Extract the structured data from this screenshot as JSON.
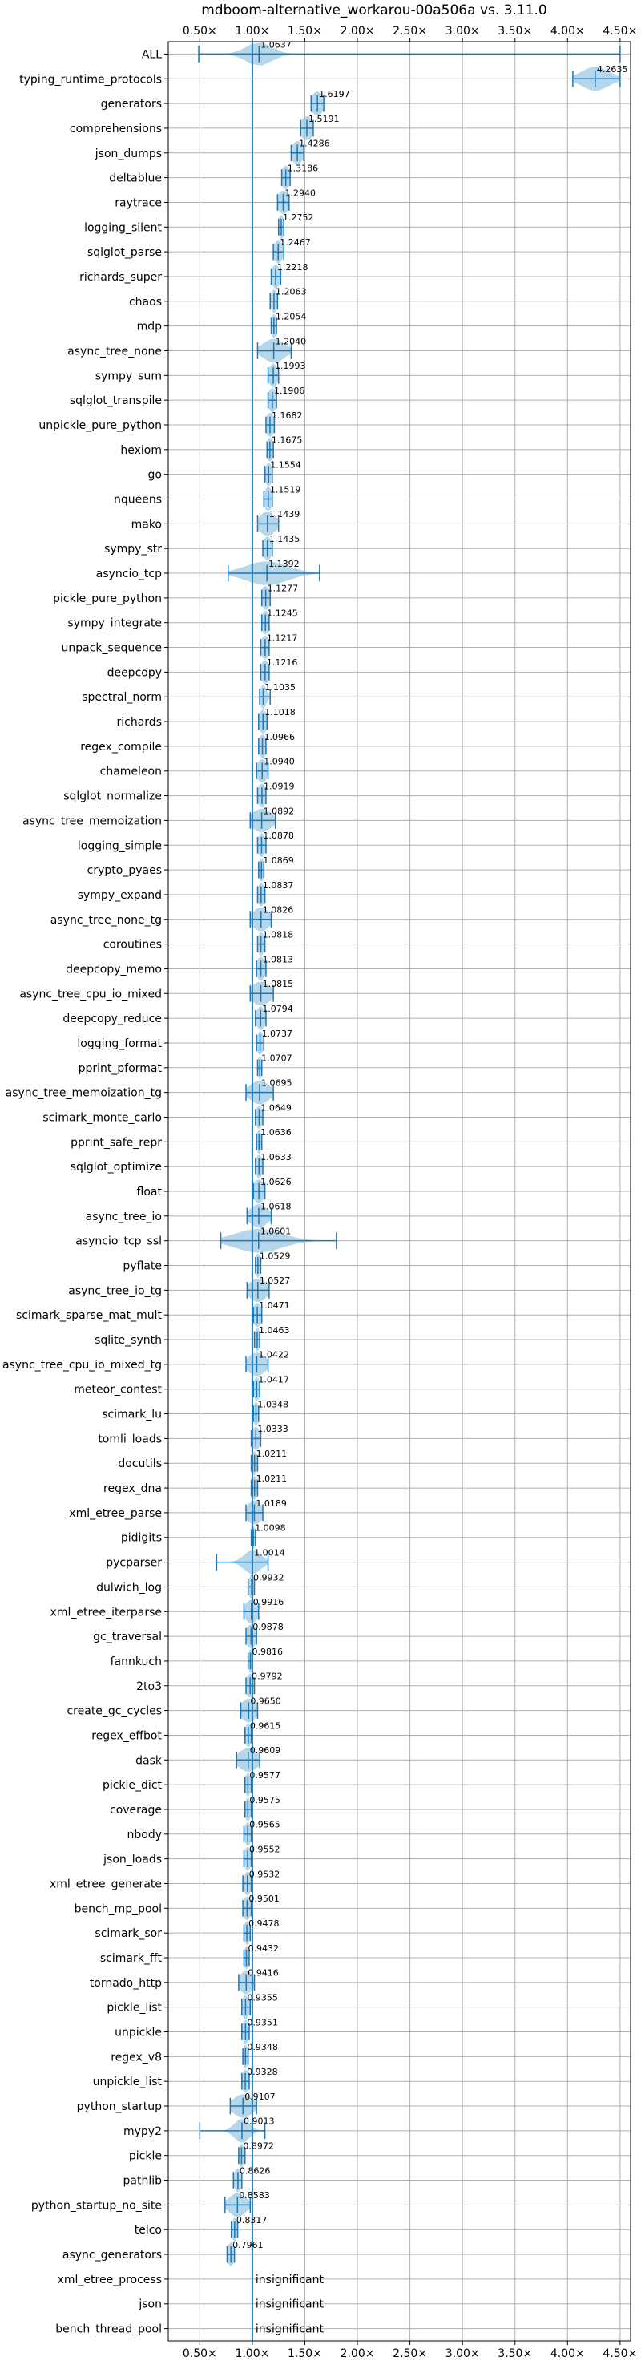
{
  "chart_data": {
    "type": "violin",
    "title": "mdboom-alternative_workarou-00a506a vs. 3.11.0",
    "xlim": [
      0.2,
      4.6
    ],
    "x_ticks": [
      0.5,
      1.0,
      1.5,
      2.0,
      2.5,
      3.0,
      3.5,
      4.0,
      4.5
    ],
    "x_tick_labels": [
      "0.50×",
      "1.00×",
      "1.50×",
      "2.00×",
      "2.50×",
      "3.00×",
      "3.50×",
      "4.00×",
      "4.50×"
    ],
    "reference_line": 1.0,
    "grid": true,
    "colors": {
      "violin": "#9ecae1",
      "stroke": "#1f77b4",
      "grid": "#b0b0b0",
      "ref": "#1f77b4"
    },
    "benchmarks": [
      {
        "name": "ALL",
        "label": "1.0637",
        "mean": 1.0637,
        "min": 0.49,
        "max": 4.5,
        "spread": 0.12
      },
      {
        "name": "typing_runtime_protocols",
        "label": "4.2635",
        "mean": 4.2635,
        "min": 4.05,
        "max": 4.5,
        "spread": 0.13
      },
      {
        "name": "generators",
        "label": "1.6197",
        "mean": 1.6197,
        "min": 1.56,
        "max": 1.68,
        "spread": 0.06
      },
      {
        "name": "comprehensions",
        "label": "1.5191",
        "mean": 1.5191,
        "min": 1.46,
        "max": 1.58,
        "spread": 0.06
      },
      {
        "name": "json_dumps",
        "label": "1.4286",
        "mean": 1.4286,
        "min": 1.37,
        "max": 1.49,
        "spread": 0.05
      },
      {
        "name": "deltablue",
        "label": "1.3186",
        "mean": 1.3186,
        "min": 1.28,
        "max": 1.36,
        "spread": 0.04
      },
      {
        "name": "raytrace",
        "label": "1.2940",
        "mean": 1.294,
        "min": 1.24,
        "max": 1.35,
        "spread": 0.05
      },
      {
        "name": "logging_silent",
        "label": "1.2752",
        "mean": 1.2752,
        "min": 1.25,
        "max": 1.3,
        "spread": 0.03
      },
      {
        "name": "sqlglot_parse",
        "label": "1.2467",
        "mean": 1.2467,
        "min": 1.2,
        "max": 1.3,
        "spread": 0.04
      },
      {
        "name": "richards_super",
        "label": "1.2218",
        "mean": 1.2218,
        "min": 1.18,
        "max": 1.27,
        "spread": 0.04
      },
      {
        "name": "chaos",
        "label": "1.2063",
        "mean": 1.2063,
        "min": 1.17,
        "max": 1.24,
        "spread": 0.03
      },
      {
        "name": "mdp",
        "label": "1.2054",
        "mean": 1.2054,
        "min": 1.18,
        "max": 1.23,
        "spread": 0.025
      },
      {
        "name": "async_tree_none",
        "label": "1.2040",
        "mean": 1.204,
        "min": 1.05,
        "max": 1.37,
        "spread": 0.1
      },
      {
        "name": "sympy_sum",
        "label": "1.1993",
        "mean": 1.1993,
        "min": 1.15,
        "max": 1.25,
        "spread": 0.04
      },
      {
        "name": "sqlglot_transpile",
        "label": "1.1906",
        "mean": 1.1906,
        "min": 1.15,
        "max": 1.23,
        "spread": 0.04
      },
      {
        "name": "unpickle_pure_python",
        "label": "1.1682",
        "mean": 1.1682,
        "min": 1.13,
        "max": 1.21,
        "spread": 0.04
      },
      {
        "name": "hexiom",
        "label": "1.1675",
        "mean": 1.1675,
        "min": 1.14,
        "max": 1.2,
        "spread": 0.03
      },
      {
        "name": "go",
        "label": "1.1554",
        "mean": 1.1554,
        "min": 1.12,
        "max": 1.19,
        "spread": 0.03
      },
      {
        "name": "nqueens",
        "label": "1.1519",
        "mean": 1.1519,
        "min": 1.11,
        "max": 1.19,
        "spread": 0.04
      },
      {
        "name": "mako",
        "label": "1.1439",
        "mean": 1.1439,
        "min": 1.05,
        "max": 1.25,
        "spread": 0.08
      },
      {
        "name": "sympy_str",
        "label": "1.1435",
        "mean": 1.1435,
        "min": 1.1,
        "max": 1.19,
        "spread": 0.04
      },
      {
        "name": "asyncio_tcp",
        "label": "1.1392",
        "mean": 1.1392,
        "min": 0.77,
        "max": 1.64,
        "spread": 0.2
      },
      {
        "name": "pickle_pure_python",
        "label": "1.1277",
        "mean": 1.1277,
        "min": 1.09,
        "max": 1.17,
        "spread": 0.04
      },
      {
        "name": "sympy_integrate",
        "label": "1.1245",
        "mean": 1.1245,
        "min": 1.09,
        "max": 1.16,
        "spread": 0.035
      },
      {
        "name": "unpack_sequence",
        "label": "1.1217",
        "mean": 1.1217,
        "min": 1.08,
        "max": 1.16,
        "spread": 0.04
      },
      {
        "name": "deepcopy",
        "label": "1.1216",
        "mean": 1.1216,
        "min": 1.08,
        "max": 1.16,
        "spread": 0.04
      },
      {
        "name": "spectral_norm",
        "label": "1.1035",
        "mean": 1.1035,
        "min": 1.07,
        "max": 1.17,
        "spread": 0.03
      },
      {
        "name": "richards",
        "label": "1.1018",
        "mean": 1.1018,
        "min": 1.06,
        "max": 1.14,
        "spread": 0.04
      },
      {
        "name": "regex_compile",
        "label": "1.0966",
        "mean": 1.0966,
        "min": 1.06,
        "max": 1.13,
        "spread": 0.035
      },
      {
        "name": "chameleon",
        "label": "1.0940",
        "mean": 1.094,
        "min": 1.04,
        "max": 1.15,
        "spread": 0.05
      },
      {
        "name": "sqlglot_normalize",
        "label": "1.0919",
        "mean": 1.0919,
        "min": 1.05,
        "max": 1.13,
        "spread": 0.04
      },
      {
        "name": "async_tree_memoization",
        "label": "1.0892",
        "mean": 1.0892,
        "min": 0.98,
        "max": 1.22,
        "spread": 0.09
      },
      {
        "name": "logging_simple",
        "label": "1.0878",
        "mean": 1.0878,
        "min": 1.05,
        "max": 1.13,
        "spread": 0.035
      },
      {
        "name": "crypto_pyaes",
        "label": "1.0869",
        "mean": 1.0869,
        "min": 1.06,
        "max": 1.11,
        "spread": 0.025
      },
      {
        "name": "sympy_expand",
        "label": "1.0837",
        "mean": 1.0837,
        "min": 1.05,
        "max": 1.12,
        "spread": 0.03
      },
      {
        "name": "async_tree_none_tg",
        "label": "1.0826",
        "mean": 1.0826,
        "min": 0.98,
        "max": 1.18,
        "spread": 0.08
      },
      {
        "name": "coroutines",
        "label": "1.0818",
        "mean": 1.0818,
        "min": 1.05,
        "max": 1.12,
        "spread": 0.03
      },
      {
        "name": "deepcopy_memo",
        "label": "1.0813",
        "mean": 1.0813,
        "min": 1.04,
        "max": 1.13,
        "spread": 0.04
      },
      {
        "name": "async_tree_cpu_io_mixed",
        "label": "1.0815",
        "mean": 1.0815,
        "min": 0.98,
        "max": 1.2,
        "spread": 0.09
      },
      {
        "name": "deepcopy_reduce",
        "label": "1.0794",
        "mean": 1.0794,
        "min": 1.03,
        "max": 1.13,
        "spread": 0.04
      },
      {
        "name": "logging_format",
        "label": "1.0737",
        "mean": 1.0737,
        "min": 1.04,
        "max": 1.11,
        "spread": 0.03
      },
      {
        "name": "pprint_pformat",
        "label": "1.0707",
        "mean": 1.0707,
        "min": 1.05,
        "max": 1.09,
        "spread": 0.02
      },
      {
        "name": "async_tree_memoization_tg",
        "label": "1.0695",
        "mean": 1.0695,
        "min": 0.94,
        "max": 1.2,
        "spread": 0.09
      },
      {
        "name": "scimark_monte_carlo",
        "label": "1.0649",
        "mean": 1.0649,
        "min": 1.03,
        "max": 1.1,
        "spread": 0.03
      },
      {
        "name": "pprint_safe_repr",
        "label": "1.0636",
        "mean": 1.0636,
        "min": 1.04,
        "max": 1.09,
        "spread": 0.025
      },
      {
        "name": "sqlglot_optimize",
        "label": "1.0633",
        "mean": 1.0633,
        "min": 1.03,
        "max": 1.1,
        "spread": 0.03
      },
      {
        "name": "float",
        "label": "1.0626",
        "mean": 1.0626,
        "min": 1.01,
        "max": 1.12,
        "spread": 0.05
      },
      {
        "name": "async_tree_io",
        "label": "1.0618",
        "mean": 1.0618,
        "min": 0.95,
        "max": 1.18,
        "spread": 0.08
      },
      {
        "name": "asyncio_tcp_ssl",
        "label": "1.0601",
        "mean": 1.0601,
        "min": 0.7,
        "max": 1.8,
        "spread": 0.22
      },
      {
        "name": "pyflate",
        "label": "1.0529",
        "mean": 1.0529,
        "min": 1.03,
        "max": 1.08,
        "spread": 0.025
      },
      {
        "name": "async_tree_io_tg",
        "label": "1.0527",
        "mean": 1.0527,
        "min": 0.95,
        "max": 1.16,
        "spread": 0.08
      },
      {
        "name": "scimark_sparse_mat_mult",
        "label": "1.0471",
        "mean": 1.0471,
        "min": 1.01,
        "max": 1.09,
        "spread": 0.04
      },
      {
        "name": "sqlite_synth",
        "label": "1.0463",
        "mean": 1.0463,
        "min": 1.02,
        "max": 1.07,
        "spread": 0.025
      },
      {
        "name": "async_tree_cpu_io_mixed_tg",
        "label": "1.0422",
        "mean": 1.0422,
        "min": 0.94,
        "max": 1.15,
        "spread": 0.08
      },
      {
        "name": "meteor_contest",
        "label": "1.0417",
        "mean": 1.0417,
        "min": 1.01,
        "max": 1.07,
        "spread": 0.03
      },
      {
        "name": "scimark_lu",
        "label": "1.0348",
        "mean": 1.0348,
        "min": 1.01,
        "max": 1.06,
        "spread": 0.025
      },
      {
        "name": "tomli_loads",
        "label": "1.0333",
        "mean": 1.0333,
        "min": 0.99,
        "max": 1.08,
        "spread": 0.04
      },
      {
        "name": "docutils",
        "label": "1.0211",
        "mean": 1.0211,
        "min": 0.99,
        "max": 1.05,
        "spread": 0.03
      },
      {
        "name": "regex_dna",
        "label": "1.0211",
        "mean": 1.0211,
        "min": 0.99,
        "max": 1.05,
        "spread": 0.03
      },
      {
        "name": "xml_etree_parse",
        "label": "1.0189",
        "mean": 1.0189,
        "min": 0.94,
        "max": 1.1,
        "spread": 0.07
      },
      {
        "name": "pidigits",
        "label": "1.0098",
        "mean": 1.0098,
        "min": 0.99,
        "max": 1.03,
        "spread": 0.02
      },
      {
        "name": "pycparser",
        "label": "1.0014",
        "mean": 1.0014,
        "min": 0.66,
        "max": 1.15,
        "spread": 0.08
      },
      {
        "name": "dulwich_log",
        "label": "0.9932",
        "mean": 0.9932,
        "min": 0.96,
        "max": 1.02,
        "spread": 0.03
      },
      {
        "name": "xml_etree_iterparse",
        "label": "0.9916",
        "mean": 0.9916,
        "min": 0.92,
        "max": 1.06,
        "spread": 0.06
      },
      {
        "name": "gc_traversal",
        "label": "0.9878",
        "mean": 0.9878,
        "min": 0.94,
        "max": 1.04,
        "spread": 0.05
      },
      {
        "name": "fannkuch",
        "label": "0.9816",
        "mean": 0.9816,
        "min": 0.96,
        "max": 1.0,
        "spread": 0.02
      },
      {
        "name": "2to3",
        "label": "0.9792",
        "mean": 0.9792,
        "min": 0.94,
        "max": 1.02,
        "spread": 0.04
      },
      {
        "name": "create_gc_cycles",
        "label": "0.9650",
        "mean": 0.965,
        "min": 0.89,
        "max": 1.05,
        "spread": 0.07
      },
      {
        "name": "regex_effbot",
        "label": "0.9615",
        "mean": 0.9615,
        "min": 0.93,
        "max": 0.99,
        "spread": 0.03
      },
      {
        "name": "dask",
        "label": "0.9609",
        "mean": 0.9609,
        "min": 0.85,
        "max": 1.07,
        "spread": 0.09
      },
      {
        "name": "pickle_dict",
        "label": "0.9577",
        "mean": 0.9577,
        "min": 0.93,
        "max": 0.99,
        "spread": 0.025
      },
      {
        "name": "coverage",
        "label": "0.9575",
        "mean": 0.9575,
        "min": 0.93,
        "max": 0.99,
        "spread": 0.025
      },
      {
        "name": "nbody",
        "label": "0.9565",
        "mean": 0.9565,
        "min": 0.92,
        "max": 0.99,
        "spread": 0.03
      },
      {
        "name": "json_loads",
        "label": "0.9552",
        "mean": 0.9552,
        "min": 0.92,
        "max": 0.99,
        "spread": 0.03
      },
      {
        "name": "xml_etree_generate",
        "label": "0.9532",
        "mean": 0.9532,
        "min": 0.91,
        "max": 0.99,
        "spread": 0.035
      },
      {
        "name": "bench_mp_pool",
        "label": "0.9501",
        "mean": 0.9501,
        "min": 0.91,
        "max": 0.99,
        "spread": 0.035
      },
      {
        "name": "scimark_sor",
        "label": "0.9478",
        "mean": 0.9478,
        "min": 0.92,
        "max": 0.98,
        "spread": 0.025
      },
      {
        "name": "scimark_fft",
        "label": "0.9432",
        "mean": 0.9432,
        "min": 0.92,
        "max": 0.97,
        "spread": 0.02
      },
      {
        "name": "tornado_http",
        "label": "0.9416",
        "mean": 0.9416,
        "min": 0.87,
        "max": 1.02,
        "spread": 0.06
      },
      {
        "name": "pickle_list",
        "label": "0.9355",
        "mean": 0.9355,
        "min": 0.9,
        "max": 0.98,
        "spread": 0.035
      },
      {
        "name": "unpickle",
        "label": "0.9351",
        "mean": 0.9351,
        "min": 0.9,
        "max": 0.97,
        "spread": 0.03
      },
      {
        "name": "regex_v8",
        "label": "0.9348",
        "mean": 0.9348,
        "min": 0.91,
        "max": 0.96,
        "spread": 0.02
      },
      {
        "name": "unpickle_list",
        "label": "0.9328",
        "mean": 0.9328,
        "min": 0.9,
        "max": 0.97,
        "spread": 0.03
      },
      {
        "name": "python_startup",
        "label": "0.9107",
        "mean": 0.9107,
        "min": 0.79,
        "max": 1.04,
        "spread": 0.09
      },
      {
        "name": "mypy2",
        "label": "0.9013",
        "mean": 0.9013,
        "min": 0.5,
        "max": 1.12,
        "spread": 0.07
      },
      {
        "name": "pickle",
        "label": "0.8972",
        "mean": 0.8972,
        "min": 0.87,
        "max": 0.93,
        "spread": 0.025
      },
      {
        "name": "pathlib",
        "label": "0.8626",
        "mean": 0.8626,
        "min": 0.82,
        "max": 0.9,
        "spread": 0.035
      },
      {
        "name": "python_startup_no_site",
        "label": "0.8583",
        "mean": 0.8583,
        "min": 0.74,
        "max": 0.98,
        "spread": 0.08
      },
      {
        "name": "telco",
        "label": "0.8317",
        "mean": 0.8317,
        "min": 0.8,
        "max": 0.86,
        "spread": 0.025
      },
      {
        "name": "async_generators",
        "label": "0.7961",
        "mean": 0.7961,
        "min": 0.76,
        "max": 0.83,
        "spread": 0.03
      },
      {
        "name": "xml_etree_process",
        "label": "insignificant",
        "insignificant": true
      },
      {
        "name": "json",
        "label": "insignificant",
        "insignificant": true
      },
      {
        "name": "bench_thread_pool",
        "label": "insignificant",
        "insignificant": true
      }
    ]
  }
}
